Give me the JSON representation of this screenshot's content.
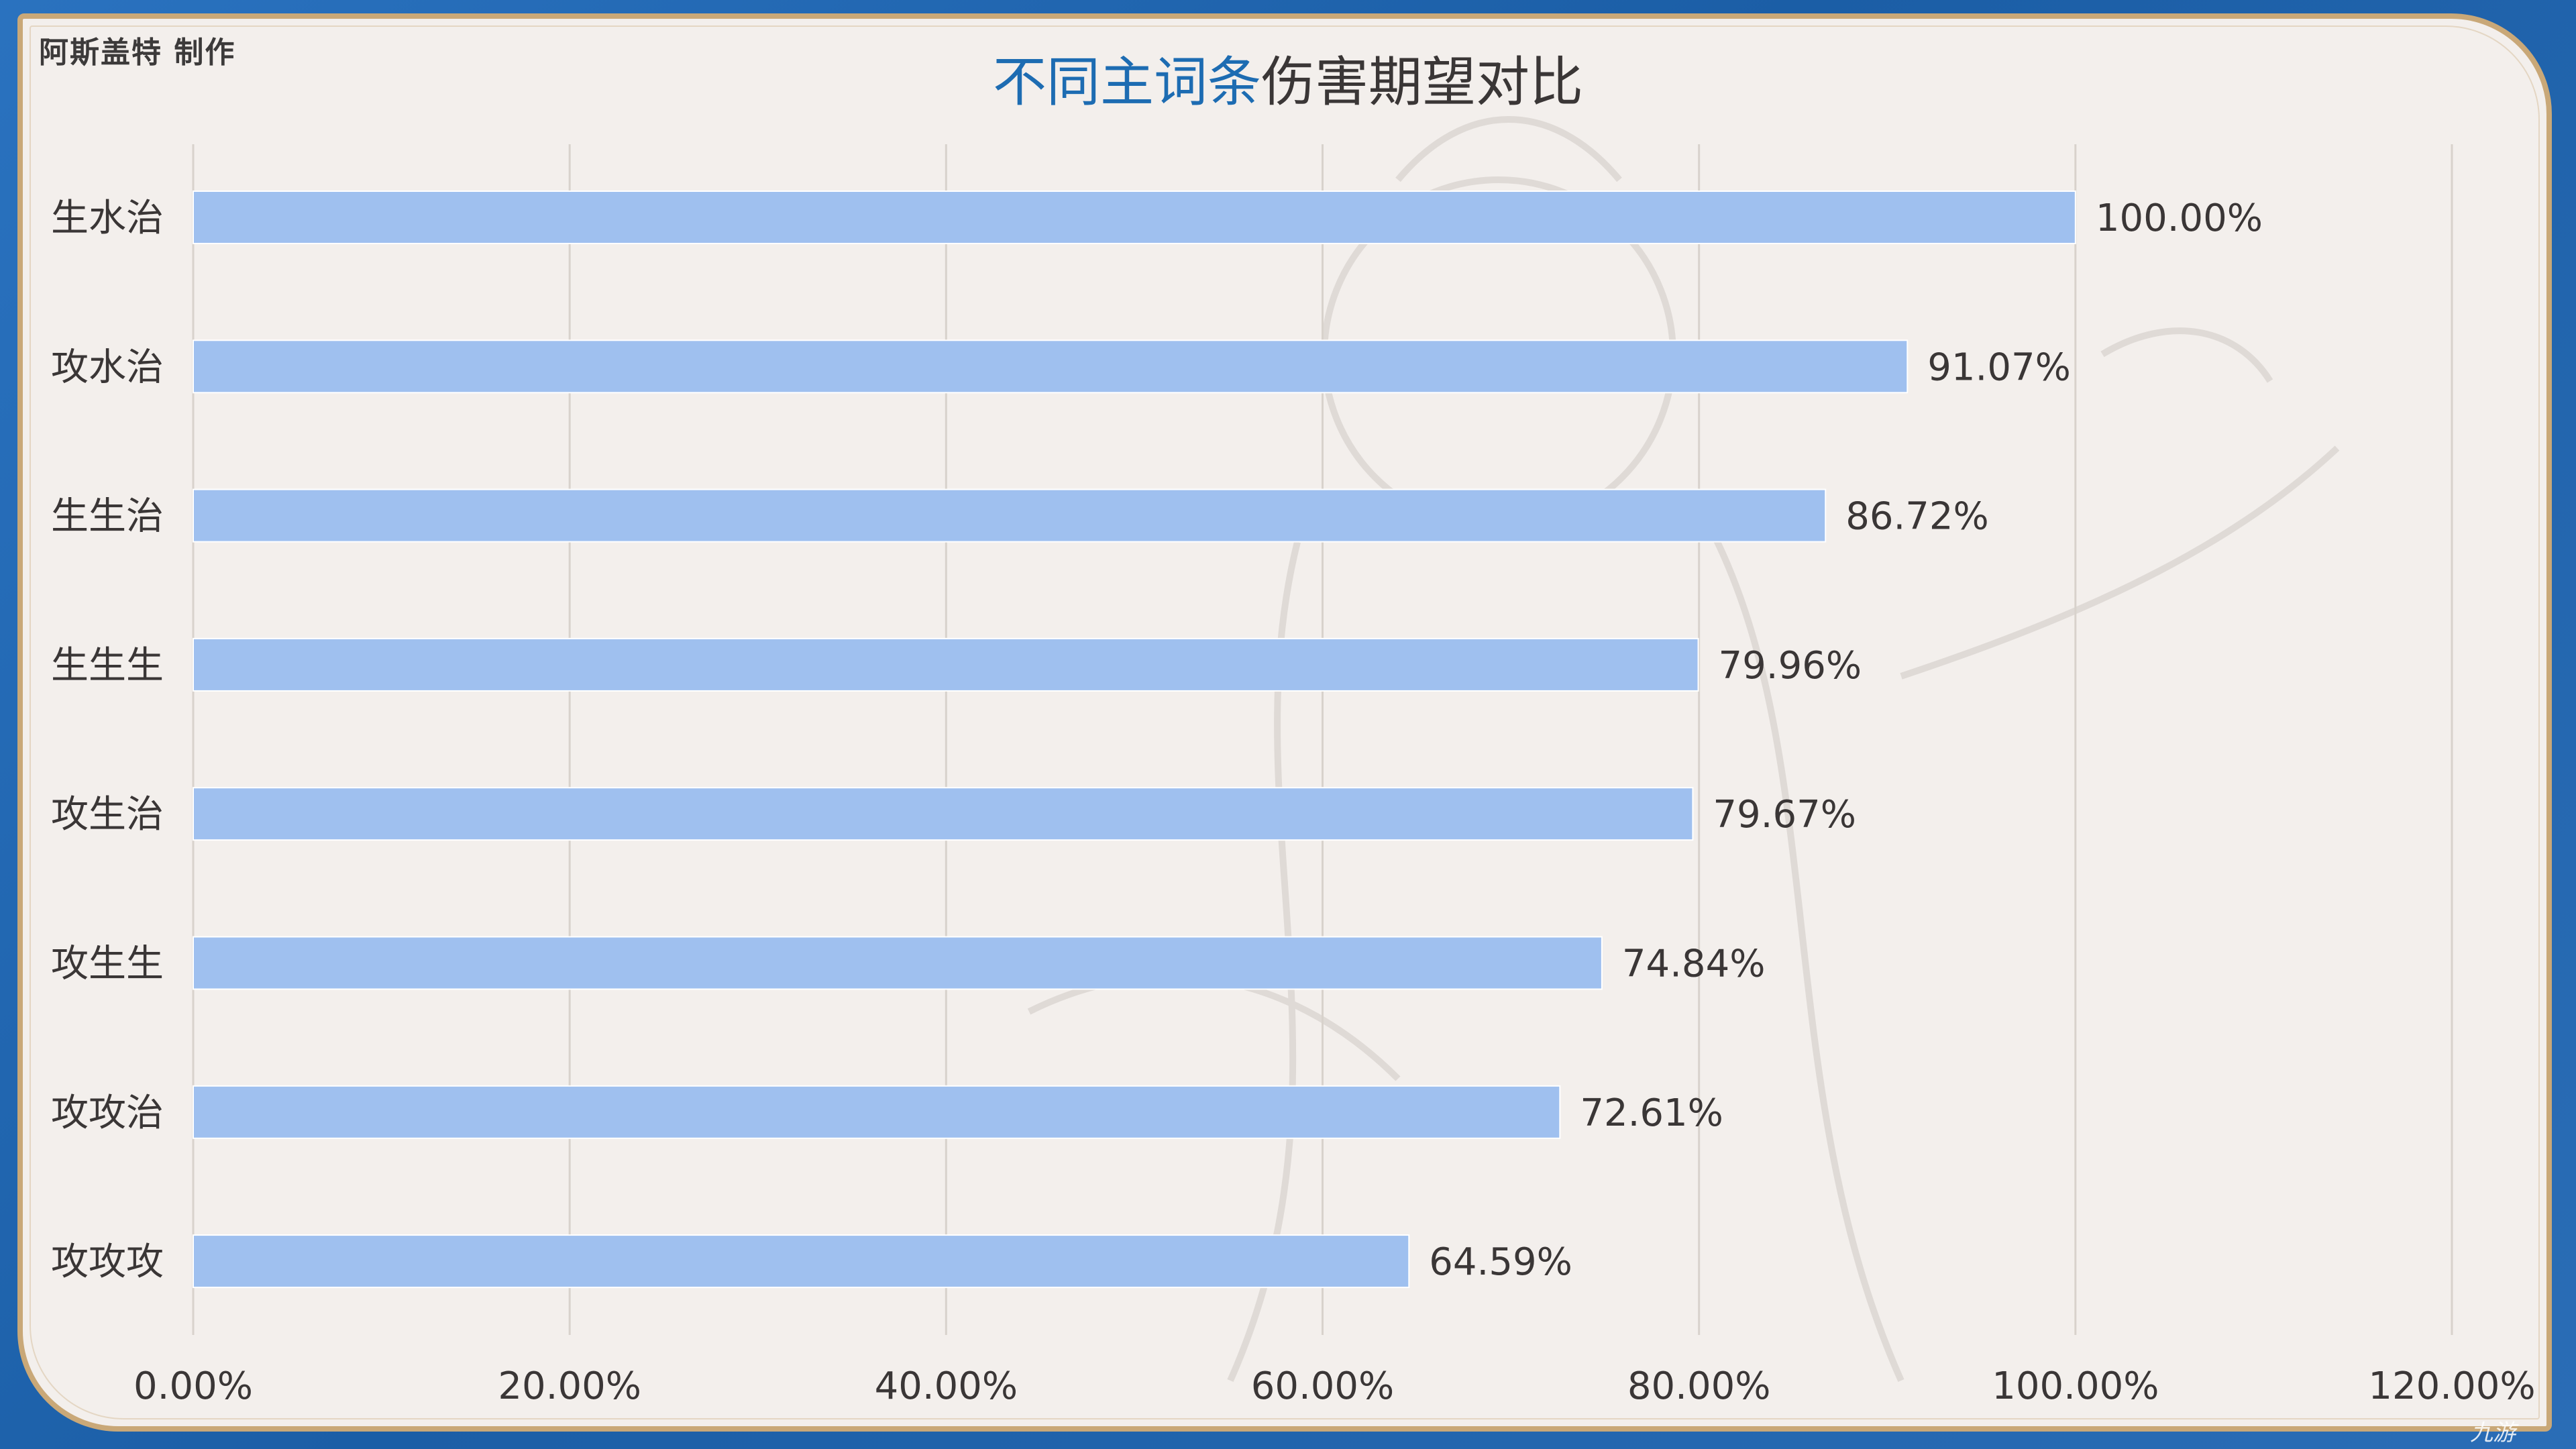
{
  "header": {
    "author": "阿斯盖特  制作",
    "title_highlight": "不同主词条",
    "title_rest": "伤害期望对比"
  },
  "logo": {
    "text": "九游"
  },
  "chart_data": {
    "type": "bar",
    "orientation": "horizontal",
    "title": "不同主词条伤害期望对比",
    "categories": [
      "生水治",
      "攻水治",
      "生生治",
      "生生生",
      "攻生治",
      "攻生生",
      "攻攻治",
      "攻攻攻"
    ],
    "values": [
      100.0,
      91.07,
      86.72,
      79.96,
      79.67,
      74.84,
      72.61,
      64.59
    ],
    "value_labels": [
      "100.00%",
      "91.07%",
      "86.72%",
      "79.96%",
      "79.67%",
      "74.84%",
      "72.61%",
      "64.59%"
    ],
    "x_ticks": [
      0,
      20,
      40,
      60,
      80,
      100,
      120
    ],
    "x_tick_labels": [
      "0.00%",
      "20.00%",
      "40.00%",
      "60.00%",
      "80.00%",
      "100.00%",
      "120.00%"
    ],
    "xlim": [
      0,
      120
    ],
    "xlabel": "",
    "ylabel": "",
    "grid": "vertical",
    "legend": "none",
    "colors": {
      "bar": "#9fc0ef",
      "grid": "#d8d2cc",
      "title_highlight": "#1d6cb2",
      "text": "#3a3636",
      "panel": "#f3efec",
      "frame": "#1b5ea6",
      "border": "#c9a878"
    }
  }
}
